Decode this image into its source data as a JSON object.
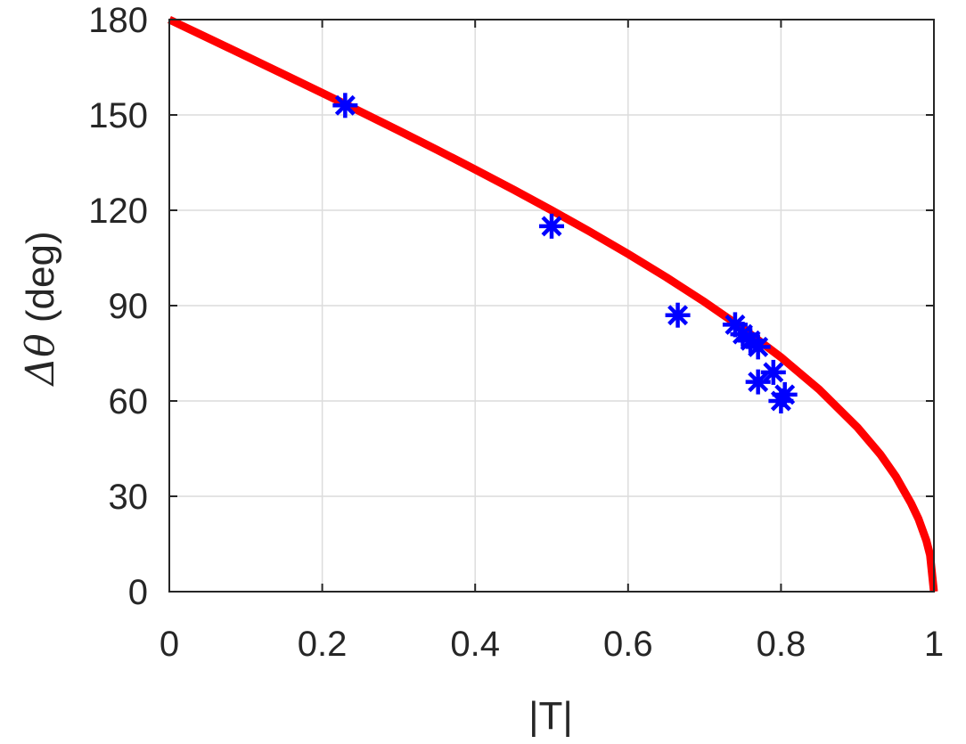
{
  "chart_data": {
    "type": "scatter",
    "xlabel": "|T|",
    "ylabel": "Δθ (deg)",
    "ylabel_parts": {
      "symbol": "Δθ",
      "unit": " (deg)"
    },
    "xlim": [
      0,
      1
    ],
    "ylim": [
      0,
      180
    ],
    "x_ticks": [
      {
        "value": 0,
        "label": "0"
      },
      {
        "value": 0.2,
        "label": "0.2"
      },
      {
        "value": 0.4,
        "label": "0.4"
      },
      {
        "value": 0.6,
        "label": "0.6"
      },
      {
        "value": 0.8,
        "label": "0.8"
      },
      {
        "value": 1,
        "label": "1"
      }
    ],
    "y_ticks": [
      {
        "value": 0,
        "label": "0"
      },
      {
        "value": 30,
        "label": "30"
      },
      {
        "value": 60,
        "label": "60"
      },
      {
        "value": 90,
        "label": "90"
      },
      {
        "value": 120,
        "label": "120"
      },
      {
        "value": 150,
        "label": "150"
      },
      {
        "value": 180,
        "label": "180"
      }
    ],
    "grid": true,
    "series": [
      {
        "kind": "line",
        "color": "#ff0000",
        "points": [
          {
            "x": 0,
            "y": 180
          },
          {
            "x": 0.05,
            "y": 174.27
          },
          {
            "x": 0.1,
            "y": 168.52
          },
          {
            "x": 0.15,
            "y": 162.75
          },
          {
            "x": 0.2,
            "y": 156.93
          },
          {
            "x": 0.25,
            "y": 151.04
          },
          {
            "x": 0.3,
            "y": 145.08
          },
          {
            "x": 0.35,
            "y": 139.03
          },
          {
            "x": 0.4,
            "y": 132.84
          },
          {
            "x": 0.45,
            "y": 126.51
          },
          {
            "x": 0.5,
            "y": 120.0
          },
          {
            "x": 0.55,
            "y": 113.27
          },
          {
            "x": 0.6,
            "y": 106.26
          },
          {
            "x": 0.65,
            "y": 98.92
          },
          {
            "x": 0.7,
            "y": 91.15
          },
          {
            "x": 0.75,
            "y": 82.82
          },
          {
            "x": 0.8,
            "y": 73.74
          },
          {
            "x": 0.85,
            "y": 63.59
          },
          {
            "x": 0.9,
            "y": 51.68
          },
          {
            "x": 0.93,
            "y": 43.17
          },
          {
            "x": 0.95,
            "y": 36.3
          },
          {
            "x": 0.97,
            "y": 27.85
          },
          {
            "x": 0.98,
            "y": 22.79
          },
          {
            "x": 0.99,
            "y": 16.14
          },
          {
            "x": 0.995,
            "y": 11.45
          },
          {
            "x": 1.0,
            "y": 0
          }
        ]
      },
      {
        "kind": "scatter",
        "marker": "asterisk",
        "color": "#0000ff",
        "points": [
          {
            "x": 0.23,
            "y": 153
          },
          {
            "x": 0.5,
            "y": 115
          },
          {
            "x": 0.665,
            "y": 87
          },
          {
            "x": 0.74,
            "y": 84
          },
          {
            "x": 0.75,
            "y": 81
          },
          {
            "x": 0.76,
            "y": 79
          },
          {
            "x": 0.77,
            "y": 77
          },
          {
            "x": 0.79,
            "y": 69
          },
          {
            "x": 0.77,
            "y": 66
          },
          {
            "x": 0.805,
            "y": 62
          },
          {
            "x": 0.8,
            "y": 60
          }
        ]
      }
    ],
    "colors": {
      "axis": "#262626",
      "grid": "#dcdcdc",
      "curve": "#ff0000",
      "markers": "#0000ff"
    }
  }
}
